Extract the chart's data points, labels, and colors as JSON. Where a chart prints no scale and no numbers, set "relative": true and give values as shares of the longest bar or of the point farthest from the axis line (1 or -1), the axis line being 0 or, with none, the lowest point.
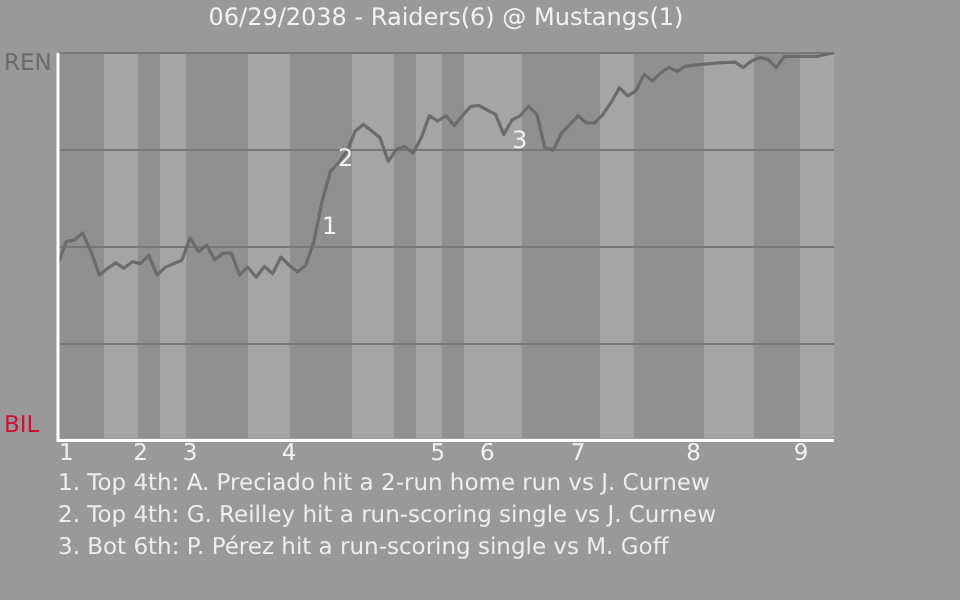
{
  "chart_data": {
    "type": "line",
    "title": "06/29/2038 - Raiders(6) @ Mustangs(1)",
    "categories": [
      null,
      "1",
      null,
      null,
      null,
      null,
      null,
      null,
      null,
      null,
      "2",
      null,
      null,
      null,
      null,
      null,
      "3",
      null,
      null,
      null,
      null,
      null,
      null,
      null,
      null,
      null,
      null,
      null,
      "4",
      null,
      null,
      null,
      null,
      null,
      null,
      null,
      null,
      null,
      null,
      null,
      null,
      null,
      null,
      null,
      null,
      null,
      "5",
      null,
      null,
      null,
      null,
      null,
      "6",
      null,
      null,
      null,
      null,
      null,
      null,
      null,
      null,
      null,
      null,
      "7",
      null,
      null,
      null,
      null,
      null,
      null,
      null,
      null,
      null,
      null,
      null,
      null,
      null,
      "8",
      null,
      null,
      null,
      null,
      null,
      null,
      null,
      null,
      null,
      null,
      null,
      null,
      "9",
      null,
      null,
      null,
      null
    ],
    "relative": true,
    "series": [
      {
        "color": "#6b6b6b",
        "values": [
          0.456,
          0.513,
          0.517,
          0.535,
          0.487,
          0.427,
          0.444,
          0.458,
          0.444,
          0.461,
          0.456,
          0.478,
          0.427,
          0.447,
          0.456,
          0.465,
          0.522,
          0.487,
          0.504,
          0.466,
          0.483,
          0.483,
          0.427,
          0.447,
          0.421,
          0.449,
          0.43,
          0.473,
          0.452,
          0.435,
          0.451,
          0.514,
          0.617,
          0.694,
          0.717,
          0.746,
          0.798,
          0.815,
          0.798,
          0.781,
          0.72,
          0.751,
          0.758,
          0.741,
          0.781,
          0.838,
          0.824,
          0.838,
          0.812,
          0.838,
          0.862,
          0.864,
          0.852,
          0.841,
          0.789,
          0.827,
          0.838,
          0.862,
          0.841,
          0.755,
          0.749,
          0.793,
          0.815,
          0.838,
          0.819,
          0.819,
          0.841,
          0.872,
          0.91,
          0.889,
          0.902,
          0.945,
          0.927,
          0.948,
          0.962,
          0.952,
          0.965,
          0.968,
          0.97,
          0.972,
          0.974,
          0.975,
          0.976,
          0.962,
          0.979,
          0.988,
          0.983,
          0.962,
          0.991,
          0.991,
          0.991,
          0.991,
          0.991,
          0.996,
          1.0
        ]
      }
    ],
    "grid": "y",
    "annotations": [
      "REN",
      "BIL",
      "1",
      "2",
      "3",
      "1. Top 4th: A. Preciado hit a 2-run home run vs J. Curnew",
      "2. Top 4th: G. Reilley hit a run-scoring single vs J. Curnew",
      "3. Bot 6th: P. Pérez hit a run-scoring single vs M. Goff"
    ]
  }
}
